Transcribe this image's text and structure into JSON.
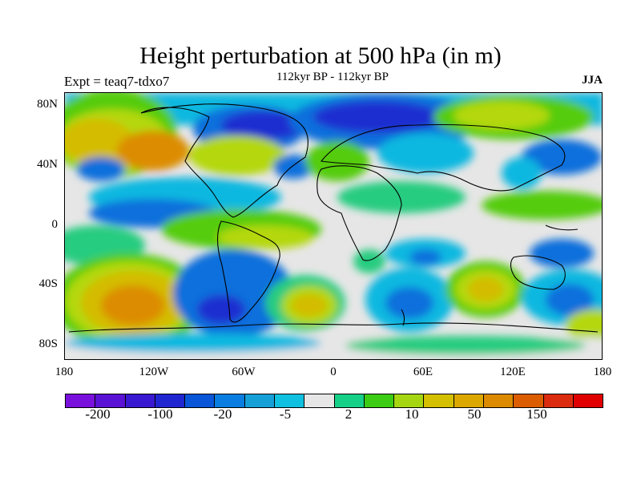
{
  "title": "Height perturbation at 500 hPa (in m)",
  "experiment": "Expt = teaq7-tdxo7",
  "subtitle": "112kyr BP - 112kyr BP",
  "season": "JJA",
  "y_ticks": [
    "80N",
    "40N",
    "0",
    "40S",
    "80S"
  ],
  "x_ticks": [
    "180",
    "120W",
    "60W",
    "0",
    "60E",
    "120E",
    "180"
  ],
  "colorbar": {
    "colors": [
      "#7a10dc",
      "#5a12d4",
      "#3a1ad0",
      "#2026d0",
      "#0a56d8",
      "#0a7ee0",
      "#16a0d8",
      "#10c0e0",
      "#e6e6e6",
      "#16d088",
      "#3ccc14",
      "#a6d612",
      "#d4c000",
      "#dca800",
      "#dc8a00",
      "#dc5c00",
      "#dc2c10",
      "#e00000"
    ],
    "labels": [
      "-200",
      "-100",
      "-20",
      "-5",
      "2",
      "10",
      "50",
      "150"
    ]
  },
  "map_colors": {
    "ocean_land_neutral": "#e6e6e6",
    "strong_negative": "#1e2ed0",
    "negative": "#0a70dc",
    "weak_negative": "#10b8e0",
    "weak_positive": "#28cc80",
    "positive": "#54cc10",
    "stronger_positive": "#b4d810",
    "high_positive": "#d4bc00",
    "peak_positive": "#dc8c00",
    "coastline": "#000000"
  }
}
